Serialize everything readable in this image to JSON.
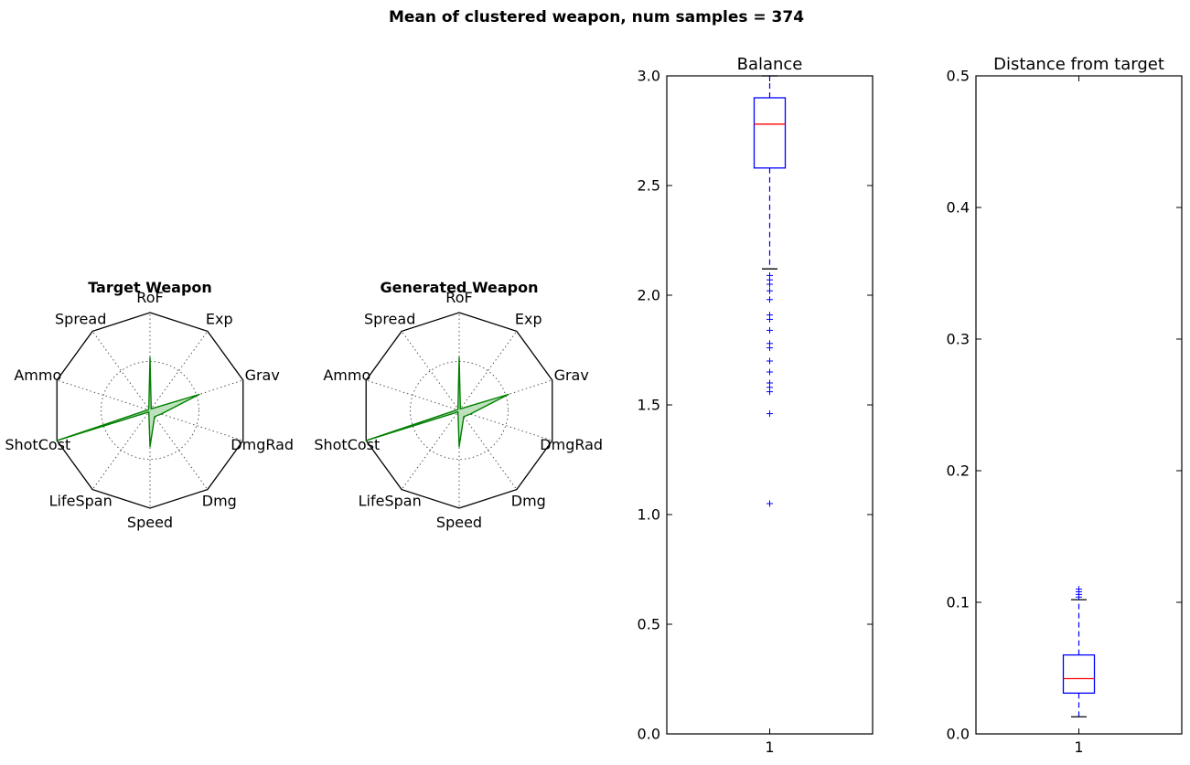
{
  "figure": {
    "title": "Mean of clustered weapon, num samples = 374"
  },
  "chart_data": [
    {
      "type": "radar",
      "title": "Target Weapon",
      "axes": [
        "RoF",
        "Exp",
        "Grav",
        "DmgRad",
        "Dmg",
        "Speed",
        "LifeSpan",
        "ShotCost",
        "Ammo",
        "Spread"
      ],
      "values": [
        0.54,
        0.02,
        0.53,
        0.12,
        0.08,
        0.37,
        0.02,
        1.0,
        0.02,
        0.02
      ],
      "rlim": [
        0,
        1
      ],
      "grid_rings": [
        0.5
      ],
      "fill_color": "#b9e0b9",
      "line_color": "#007f00"
    },
    {
      "type": "radar",
      "title": "Generated Weapon",
      "axes": [
        "RoF",
        "Exp",
        "Grav",
        "DmgRad",
        "Dmg",
        "Speed",
        "LifeSpan",
        "ShotCost",
        "Ammo",
        "Spread"
      ],
      "values": [
        0.54,
        0.02,
        0.53,
        0.12,
        0.08,
        0.37,
        0.02,
        1.0,
        0.02,
        0.02
      ],
      "rlim": [
        0,
        1
      ],
      "grid_rings": [
        0.5
      ],
      "fill_color": "#b9e0b9",
      "line_color": "#007f00"
    },
    {
      "type": "box",
      "title": "Balance",
      "categories": [
        "1"
      ],
      "ylim": [
        0,
        3.0
      ],
      "yticks": [
        "0.0",
        "0.5",
        "1.0",
        "1.5",
        "2.0",
        "2.5",
        "3.0"
      ],
      "ytick_values": [
        0,
        0.5,
        1.0,
        1.5,
        2.0,
        2.5,
        3.0
      ],
      "box": {
        "q1": 2.58,
        "median": 2.78,
        "q3": 2.9,
        "whisker_low": 2.12,
        "whisker_high": 3.0
      },
      "outliers": [
        2.09,
        2.07,
        2.05,
        2.02,
        1.98,
        1.91,
        1.89,
        1.84,
        1.78,
        1.76,
        1.7,
        1.65,
        1.6,
        1.58,
        1.56,
        1.46,
        1.05
      ],
      "box_color": "#0000ff",
      "median_color": "#ff0000"
    },
    {
      "type": "box",
      "title": "Distance from target",
      "categories": [
        "1"
      ],
      "ylim": [
        0,
        0.5
      ],
      "yticks": [
        "0.0",
        "0.1",
        "0.2",
        "0.3",
        "0.4",
        "0.5"
      ],
      "ytick_values": [
        0,
        0.1,
        0.2,
        0.3,
        0.4,
        0.5
      ],
      "box": {
        "q1": 0.031,
        "median": 0.042,
        "q3": 0.06,
        "whisker_low": 0.013,
        "whisker_high": 0.102
      },
      "outliers": [
        0.104,
        0.106,
        0.108,
        0.11
      ],
      "box_color": "#0000ff",
      "median_color": "#ff0000"
    }
  ]
}
